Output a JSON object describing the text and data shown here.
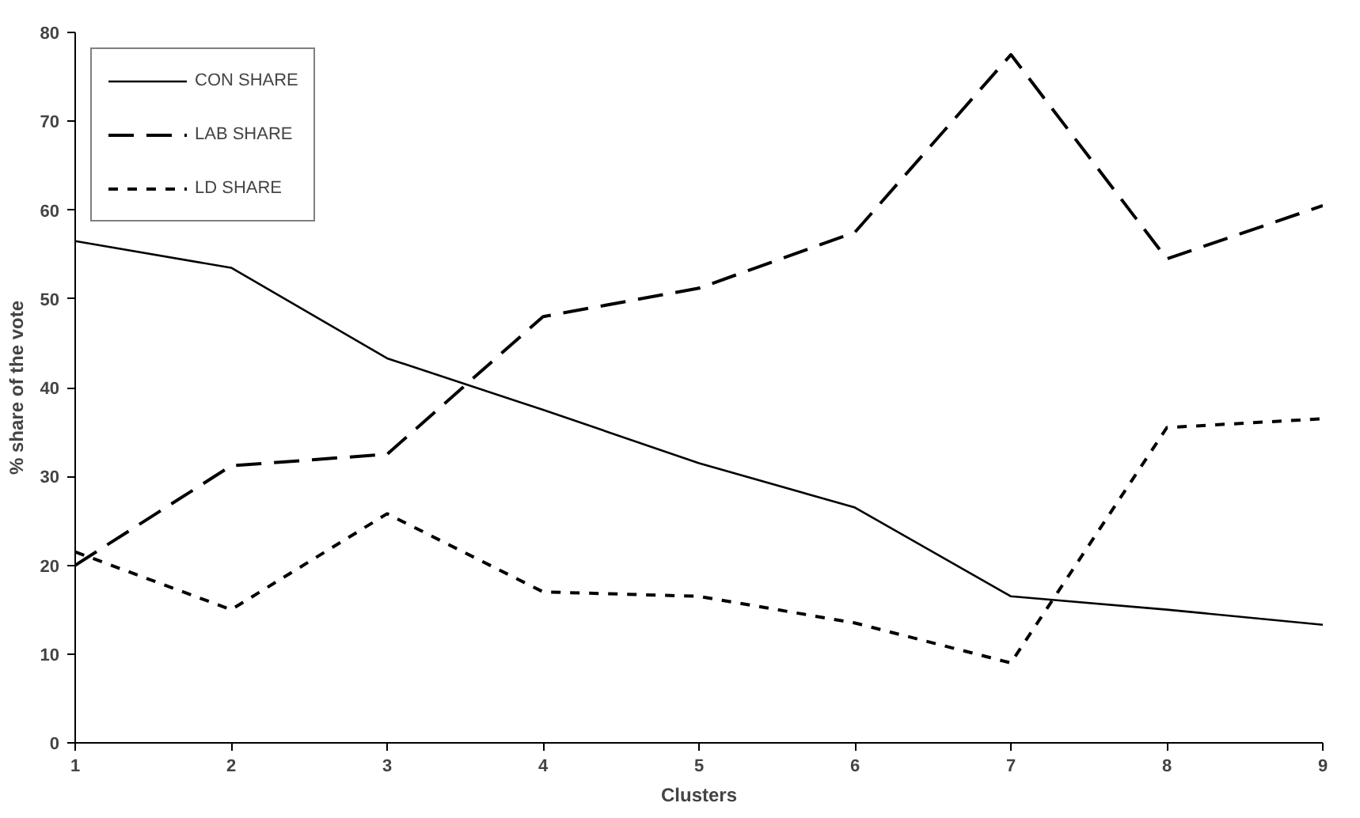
{
  "chart_data": {
    "type": "line",
    "xlabel": "Clusters",
    "ylabel": "% share of the vote",
    "x": [
      1,
      2,
      3,
      4,
      5,
      6,
      7,
      8,
      9
    ],
    "xlim": [
      1,
      9
    ],
    "xticks": [
      1,
      2,
      3,
      4,
      5,
      6,
      7,
      8,
      9
    ],
    "ylim": [
      0,
      80
    ],
    "yticks": [
      0,
      10,
      20,
      30,
      40,
      50,
      60,
      70,
      80
    ],
    "grid": false,
    "legend": "top left",
    "marker": "none",
    "series": [
      {
        "name": "CON SHARE",
        "color": "#000000",
        "line_style": "solid",
        "values": [
          56.5,
          53.5,
          43.3,
          37.5,
          31.5,
          26.5,
          16.5,
          15,
          13.3
        ]
      },
      {
        "name": "LAB SHARE",
        "color": "#000000",
        "line_style": "dashed",
        "values": [
          20,
          31.2,
          32.5,
          48,
          51.2,
          57.5,
          77.5,
          54.5,
          60.5
        ]
      },
      {
        "name": "LD SHARE",
        "color": "#000000",
        "line_style": "dotted",
        "values": [
          21.5,
          15,
          25.8,
          17,
          16.5,
          13.5,
          9,
          35.5,
          36.5
        ]
      }
    ]
  }
}
